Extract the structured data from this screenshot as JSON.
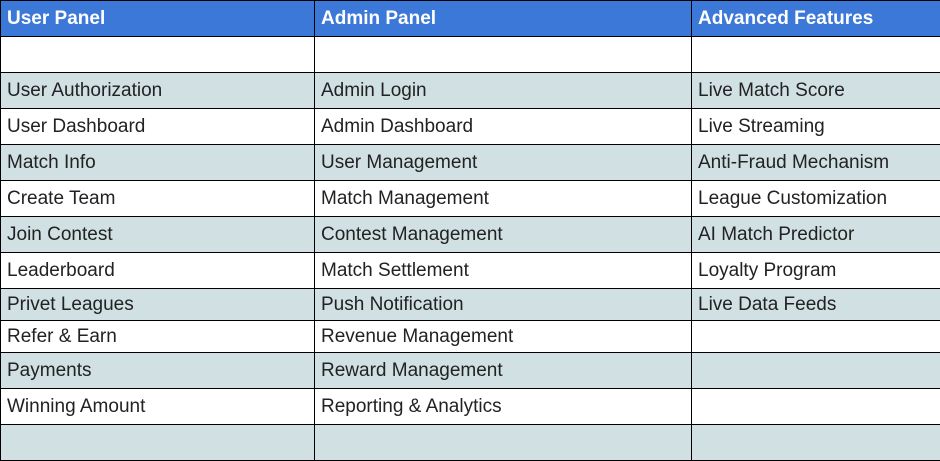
{
  "table": {
    "headers": [
      "User Panel",
      "Admin Panel",
      "Advanced Features"
    ],
    "rows": [
      [
        "",
        "",
        ""
      ],
      [
        "User Authorization",
        "Admin Login",
        "Live Match Score"
      ],
      [
        "User Dashboard",
        "Admin Dashboard",
        "Live Streaming"
      ],
      [
        "Match Info",
        "User Management",
        "Anti-Fraud Mechanism"
      ],
      [
        "Create Team",
        "Match Management",
        "League Customization"
      ],
      [
        "Join Contest",
        "Contest Management",
        "AI Match Predictor"
      ],
      [
        "Leaderboard",
        "Match Settlement",
        "Loyalty Program"
      ],
      [
        "Privet Leagues",
        "Push Notification",
        "Live Data Feeds"
      ],
      [
        "Refer & Earn",
        "Revenue Management",
        ""
      ],
      [
        "Payments",
        "Reward Management",
        ""
      ],
      [
        "Winning Amount",
        "Reporting & Analytics",
        ""
      ],
      [
        "",
        "",
        ""
      ]
    ]
  },
  "colors": {
    "header_bg": "#3c78d8",
    "header_text": "#ffffff",
    "band_bg": "#d0e0e3",
    "row_bg": "#ffffff",
    "grid": "#000000"
  }
}
